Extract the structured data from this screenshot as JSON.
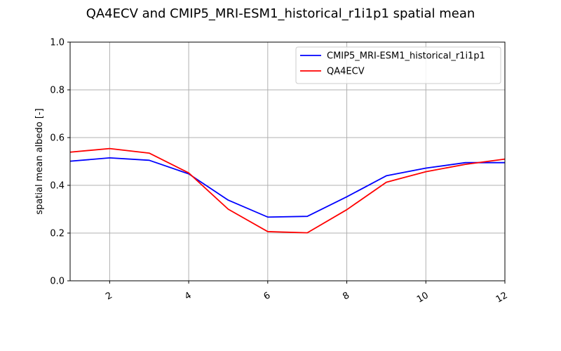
{
  "chart_data": {
    "type": "line",
    "title": "QA4ECV and CMIP5_MRI-ESM1_historical_r1i1p1 spatial mean",
    "xlabel": "",
    "ylabel": "spatial mean albedo [-]",
    "xlim": [
      1,
      12
    ],
    "ylim": [
      0,
      1
    ],
    "xticks": [
      "2",
      "4",
      "6",
      "8",
      "10",
      "12"
    ],
    "yticks": [
      "0.0",
      "0.2",
      "0.4",
      "0.6",
      "0.8",
      "1.0"
    ],
    "grid": true,
    "legend_position": "top-right",
    "x": [
      1,
      2,
      3,
      4,
      5,
      6,
      7,
      8,
      9,
      10,
      11,
      12
    ],
    "series": [
      {
        "name": "CMIP5_MRI-ESM1_historical_r1i1p1",
        "color": "#0000ff",
        "values": [
          0.501,
          0.515,
          0.505,
          0.448,
          0.338,
          0.267,
          0.27,
          0.352,
          0.44,
          0.472,
          0.495,
          0.495
        ]
      },
      {
        "name": "QA4ECV",
        "color": "#ff0000",
        "values": [
          0.539,
          0.554,
          0.535,
          0.452,
          0.3,
          0.206,
          0.201,
          0.298,
          0.413,
          0.457,
          0.488,
          0.51
        ]
      }
    ]
  }
}
